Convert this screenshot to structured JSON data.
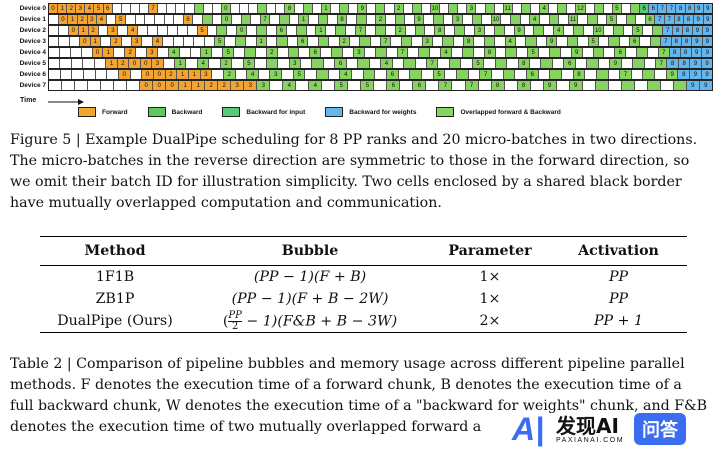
{
  "figure": {
    "device_labels": [
      "Device 0",
      "Device 1",
      "Device 2",
      "Device 3",
      "Device 4",
      "Device 5",
      "Device 6",
      "Device 7"
    ],
    "time_label": "Time",
    "rows": [
      "F0 F1 F2 F3 F4 F5 F6 E E E E F7 E E E E O E E O0 E E E O E E O8 E O E O1 E O E O9 E O E O2 E O E O10 E O E O3 E O E O11 E O E O4 E O E O12 E O E O5 E O W6 BW6 BW7 BW7 BW8 BW8 BW9 BW9",
      "E F0 F1 F2 F3 F4 E F5 E E E E E E F6 E O E O0 E O E O7 E O E O1 E O E O8 E O E O2 E O E O9 E O E O3 E O E O10 E O E O4 E O E O11 E O E O5 E O E O6 BW7 BW7 BW8 BW8 BW9 BW9",
      "E E F0 F1 F2 E F3 E F4 E E E E E E F5 E O E O0 E O E O6 E O E O1 E O E O7 E O E O2 E O E O8 E O E O3 E O E O9 E O E O4 E O E O10 E O E O5 E O BW7 BW8 BW8 BW9 BW9",
      "E E E F0 F1 E F2 E F3 E F4 E E E E E O5 E O E O1 E O E O6 E O E O2 E O E O7 E O E O3 E O E O8 E O E O4 E O E O9 E O E O5 E O E O6 E O BW7 BW8 BW8 BW9 BW9",
      "E E E E F0 F1 E F2 E F3 E O4 E E O1 E O5 E O E O2 E O E O6 E O E O3 E O E O7 E O E O4 E O E O8 E O E O5 E O E O9 E O E O6 E O E O7 BW8 BW8 BW9 BW9",
      "E E E E E F1 F2 F0 F0 F3 E O1 E O4 E O2 E O5 E O E O3 E O E O6 E O E O4 E O E O7 E O E O5 E O E O8 E O E O6 E O E O9 E O E O7 BW8 BW8 BW9 BW9",
      "E E E E E E F0 E F0 F0 F2 F1 F1 F3 E O2 E O4 E O3 E O5 E O E O4 E O E O6 E O E O5 E O E O7 E O E O6 E O E O8 E O E O7 E O E O9 BW8 BW9 BW9",
      "E E E E E E E F0 F0 F0 F1 F1 F2 F2 F3 F3 O3 E O4 E O4 E O5 E O5 E O6 E O6 E O7 E O7 E O8 E O8 E O9 E O9 E O E O E O E O BW9 BW9"
    ],
    "colors": {
      "forward": "#f4a430",
      "backward": "#5cc95a",
      "backward_input": "#58c97a",
      "backward_weights": "#66b6ee",
      "overlapped": "#86d360"
    },
    "legend": [
      {
        "key": "forward",
        "label": "Forward"
      },
      {
        "key": "backward",
        "label": "Backward"
      },
      {
        "key": "backward_input",
        "label": "Backward for input"
      },
      {
        "key": "backward_weights",
        "label": "Backward for weights"
      },
      {
        "key": "overlapped",
        "label": "Overlapped forward & Backward"
      }
    ]
  },
  "captions": {
    "figure_lines": [
      "Figure 5 | Example DualPipe scheduling for 8 PP ranks and 20 micro-batches in two directions.",
      "The micro-batches in the reverse direction are symmetric to those in the forward direction, so",
      "we omit their batch ID for illustration simplicity. Two cells enclosed by a shared black border",
      "have mutually overlapped computation and communication."
    ],
    "table_lines": [
      "Table 2 | Comparison of pipeline bubbles and memory usage across different pipeline parallel",
      "methods. F denotes the execution time of a forward chunk, B denotes the execution time of a",
      "full backward chunk, W denotes the execution time of a \"backward for weights\" chunk, and F&B",
      "denotes the execution time of two mutually overlapped forward a"
    ]
  },
  "table": {
    "headers": [
      "Method",
      "Bubble",
      "Parameter",
      "Activation"
    ],
    "rows": [
      {
        "method": "1F1B",
        "bubble": "(PP − 1)(F + B)",
        "parameter": "1×",
        "activation": "PP"
      },
      {
        "method": "ZB1P",
        "bubble": "(PP − 1)(F + B − 2W)",
        "parameter": "1×",
        "activation": "PP"
      },
      {
        "method": "DualPipe (Ours)",
        "bubble_frac_num": "PP",
        "bubble_frac_den": "2",
        "bubble_rest": " − 1)(F&B + B − 3W)",
        "parameter": "2×",
        "activation": "PP + 1"
      }
    ]
  },
  "watermark": {
    "main": "发现AI",
    "sub": "PAXIANAI.COM",
    "badge": "问答"
  }
}
